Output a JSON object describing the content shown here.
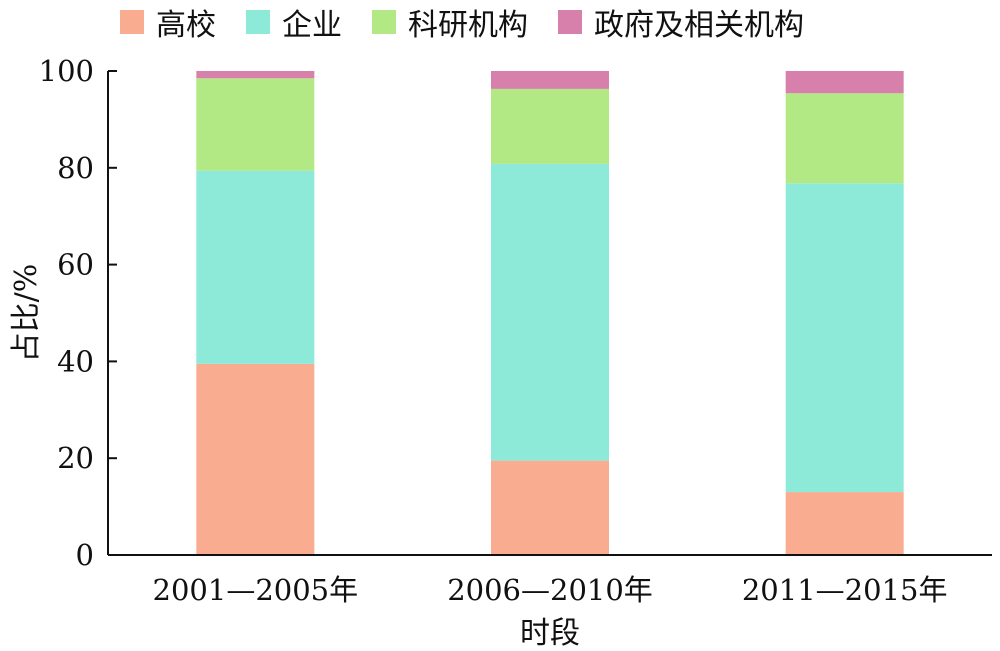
{
  "chart_data": {
    "type": "bar",
    "stacked": true,
    "categories": [
      "2001—2005年",
      "2006—2010年",
      "2011—2015年"
    ],
    "series": [
      {
        "name": "高校",
        "color": "#F9AC90",
        "values": [
          39.5,
          19.5,
          13.0
        ]
      },
      {
        "name": "企业",
        "color": "#8DEAD9",
        "values": [
          39.9,
          61.3,
          63.8
        ]
      },
      {
        "name": "科研机构",
        "color": "#B3E985",
        "values": [
          19.1,
          15.5,
          18.6
        ]
      },
      {
        "name": "政府及相关机构",
        "color": "#D780AC",
        "values": [
          1.5,
          3.7,
          4.6
        ]
      }
    ],
    "xlabel": "时段",
    "ylabel": "占比/%",
    "ylim": [
      0,
      100
    ],
    "yticks": [
      0,
      20,
      40,
      60,
      80,
      100
    ],
    "grid": false,
    "legend": "top"
  }
}
